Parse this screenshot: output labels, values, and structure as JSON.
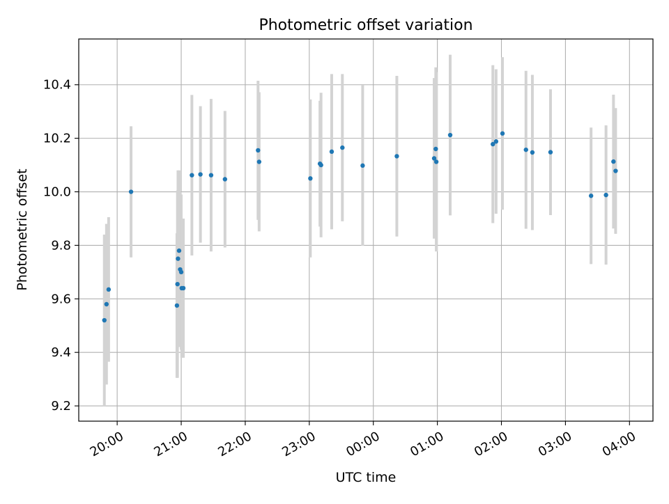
{
  "chart_data": {
    "type": "scatter",
    "title": "Photometric offset variation",
    "xlabel": "UTC time",
    "ylabel": "Photometric offset",
    "x_ticks": [
      {
        "label": "20:00",
        "minutes": 0
      },
      {
        "label": "21:00",
        "minutes": 60
      },
      {
        "label": "22:00",
        "minutes": 120
      },
      {
        "label": "23:00",
        "minutes": 180
      },
      {
        "label": "00:00",
        "minutes": 240
      },
      {
        "label": "01:00",
        "minutes": 300
      },
      {
        "label": "02:00",
        "minutes": 360
      },
      {
        "label": "03:00",
        "minutes": 420
      },
      {
        "label": "04:00",
        "minutes": 480
      }
    ],
    "xlim_minutes": [
      -36,
      502
    ],
    "y_ticks": [
      9.2,
      9.4,
      9.6,
      9.8,
      10.0,
      10.2,
      10.4
    ],
    "ylim": [
      9.143,
      10.571
    ],
    "grid": true,
    "marker_color": "#1f77b4",
    "errorbar_color": "#d3d3d3",
    "points": [
      {
        "t": -12,
        "y": 9.52,
        "err": 0.32
      },
      {
        "t": -10,
        "y": 9.58,
        "err": 0.3
      },
      {
        "t": -8,
        "y": 9.635,
        "err": 0.27
      },
      {
        "t": 13,
        "y": 10.0,
        "err": 0.245
      },
      {
        "t": 56,
        "y": 9.575,
        "err": 0.27
      },
      {
        "t": 56.5,
        "y": 9.655,
        "err": 0.35
      },
      {
        "t": 57,
        "y": 9.75,
        "err": 0.33
      },
      {
        "t": 58,
        "y": 9.78,
        "err": 0.3
      },
      {
        "t": 59,
        "y": 9.71,
        "err": 0.29
      },
      {
        "t": 60,
        "y": 9.7,
        "err": 0.29
      },
      {
        "t": 60.5,
        "y": 9.64,
        "err": 0.26
      },
      {
        "t": 62,
        "y": 9.64,
        "err": 0.26
      },
      {
        "t": 70,
        "y": 10.062,
        "err": 0.3
      },
      {
        "t": 78,
        "y": 10.065,
        "err": 0.255
      },
      {
        "t": 88,
        "y": 10.062,
        "err": 0.285
      },
      {
        "t": 101,
        "y": 10.047,
        "err": 0.255
      },
      {
        "t": 132,
        "y": 10.155,
        "err": 0.26
      },
      {
        "t": 133,
        "y": 10.112,
        "err": 0.26
      },
      {
        "t": 181,
        "y": 10.05,
        "err": 0.295
      },
      {
        "t": 190,
        "y": 10.105,
        "err": 0.235
      },
      {
        "t": 191,
        "y": 10.1,
        "err": 0.27
      },
      {
        "t": 201,
        "y": 10.15,
        "err": 0.29
      },
      {
        "t": 211,
        "y": 10.165,
        "err": 0.275
      },
      {
        "t": 230,
        "y": 10.098,
        "err": 0.3
      },
      {
        "t": 262,
        "y": 10.133,
        "err": 0.3
      },
      {
        "t": 297,
        "y": 10.125,
        "err": 0.3
      },
      {
        "t": 298.5,
        "y": 10.16,
        "err": 0.305
      },
      {
        "t": 299,
        "y": 10.112,
        "err": 0.335
      },
      {
        "t": 312,
        "y": 10.212,
        "err": 0.3
      },
      {
        "t": 352,
        "y": 10.178,
        "err": 0.295
      },
      {
        "t": 355,
        "y": 10.188,
        "err": 0.27
      },
      {
        "t": 361,
        "y": 10.218,
        "err": 0.285
      },
      {
        "t": 383,
        "y": 10.157,
        "err": 0.295
      },
      {
        "t": 389,
        "y": 10.147,
        "err": 0.29
      },
      {
        "t": 406,
        "y": 10.148,
        "err": 0.235
      },
      {
        "t": 444,
        "y": 9.985,
        "err": 0.255
      },
      {
        "t": 458,
        "y": 9.988,
        "err": 0.26
      },
      {
        "t": 465,
        "y": 10.113,
        "err": 0.25
      },
      {
        "t": 467,
        "y": 10.078,
        "err": 0.235
      }
    ]
  }
}
